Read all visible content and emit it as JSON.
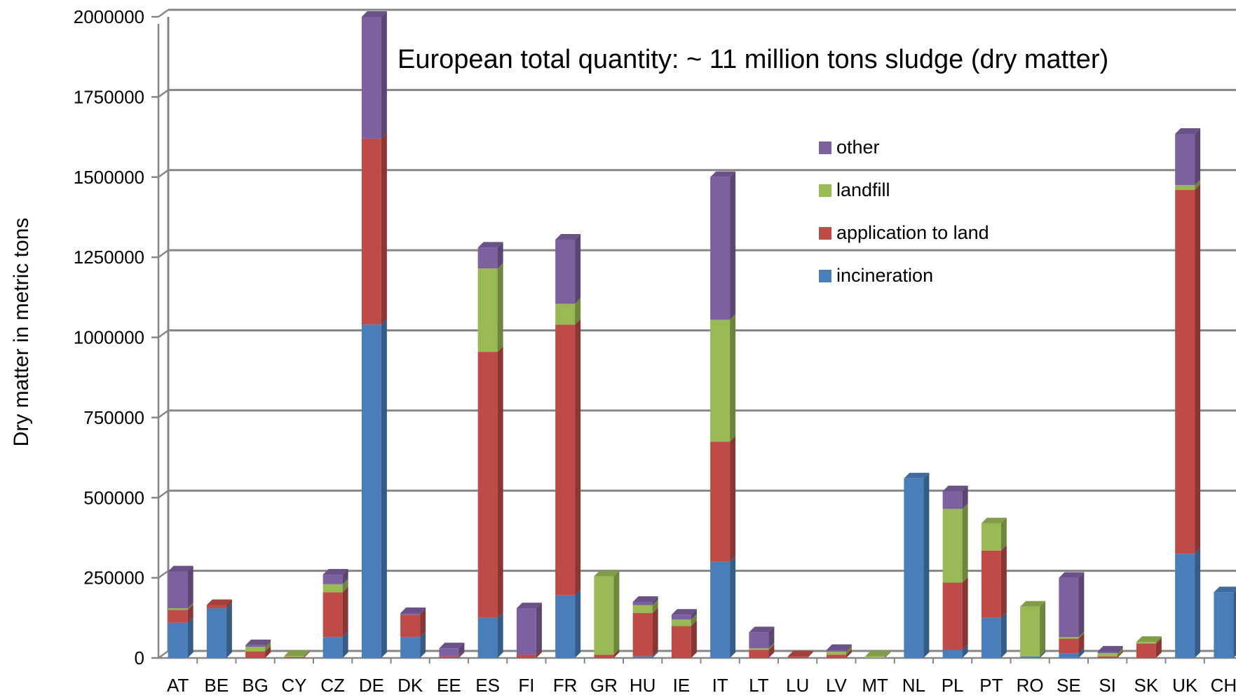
{
  "chart_data": {
    "type": "bar",
    "stacked": true,
    "style": "3d",
    "ylabel": "Dry matter in metric tons",
    "xlabel": "",
    "ylim": [
      0,
      2000000
    ],
    "yticks": [
      "0",
      "250000",
      "500000",
      "750000",
      "1000000",
      "1250000",
      "1500000",
      "1750000",
      "2000000"
    ],
    "grid": true,
    "legend_position": "upper-right",
    "annotation": "European total quantity: ~ 11 million tons sludge (dry matter)",
    "categories": [
      "AT",
      "BE",
      "BG",
      "CY",
      "CZ",
      "DE",
      "DK",
      "EE",
      "ES",
      "FI",
      "FR",
      "GR",
      "HU",
      "IE",
      "IT",
      "LT",
      "LU",
      "LV",
      "MT",
      "NL",
      "PL",
      "PT",
      "RO",
      "SE",
      "SI",
      "SK",
      "UK",
      "CH"
    ],
    "series": [
      {
        "name": "incineration",
        "color": "#4a7ebb",
        "values": [
          110000,
          155000,
          0,
          0,
          65000,
          1040000,
          65000,
          0,
          125000,
          0,
          195000,
          0,
          5000,
          0,
          300000,
          0,
          0,
          0,
          0,
          560000,
          25000,
          125000,
          5000,
          15000,
          0,
          0,
          325000,
          205000
        ]
      },
      {
        "name": "application to land",
        "color": "#be4b48",
        "values": [
          40000,
          10000,
          20000,
          3000,
          140000,
          580000,
          70000,
          5000,
          830000,
          10000,
          845000,
          10000,
          135000,
          100000,
          375000,
          25000,
          5000,
          10000,
          0,
          0,
          210000,
          210000,
          0,
          45000,
          5000,
          45000,
          1135000,
          0
        ]
      },
      {
        "name": "landfill",
        "color": "#98b954",
        "values": [
          5000,
          0,
          15000,
          3000,
          25000,
          0,
          0,
          0,
          260000,
          0,
          65000,
          245000,
          25000,
          20000,
          380000,
          5000,
          0,
          10000,
          5000,
          0,
          230000,
          85000,
          155000,
          5000,
          10000,
          5000,
          15000,
          0
        ]
      },
      {
        "name": "other",
        "color": "#7d60a0",
        "values": [
          115000,
          0,
          5000,
          0,
          30000,
          380000,
          5000,
          25000,
          65000,
          145000,
          200000,
          0,
          10000,
          15000,
          445000,
          50000,
          0,
          5000,
          0,
          0,
          55000,
          0,
          0,
          185000,
          5000,
          0,
          160000,
          0
        ]
      }
    ]
  }
}
